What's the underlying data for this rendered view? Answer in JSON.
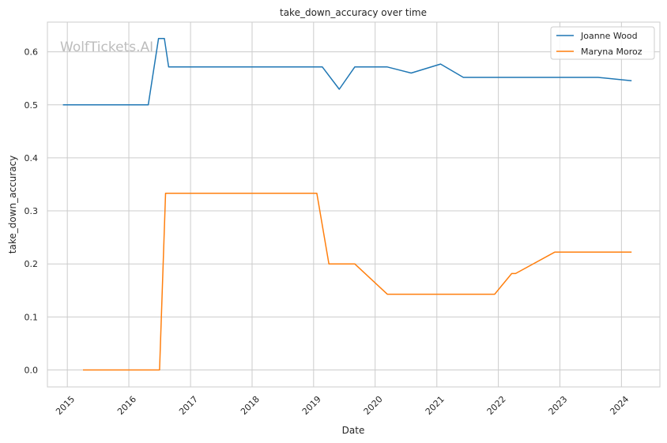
{
  "watermark": "WolfTickets.AI",
  "chart_data": {
    "type": "line",
    "title": "take_down_accuracy over time",
    "xlabel": "Date",
    "ylabel": "take_down_accuracy",
    "x_tick_labels": [
      "2015",
      "2016",
      "2017",
      "2018",
      "2019",
      "2020",
      "2021",
      "2022",
      "2023",
      "2024"
    ],
    "y_tick_labels": [
      "0.0",
      "0.1",
      "0.2",
      "0.3",
      "0.4",
      "0.5",
      "0.6"
    ],
    "ylim": [
      -0.032,
      0.656
    ],
    "xlim": [
      "2014-09-05",
      "2024-08-16"
    ],
    "grid": true,
    "legend_position": "top-right",
    "colors": {
      "Joanne Wood": "#1f77b4",
      "Maryna Moroz": "#ff7f0e"
    },
    "series": [
      {
        "name": "Joanne Wood",
        "points": [
          {
            "x": "2014-12-06",
            "y": 0.5
          },
          {
            "x": "2016-04-25",
            "y": 0.5
          },
          {
            "x": "2016-06-25",
            "y": 0.625
          },
          {
            "x": "2016-07-30",
            "y": 0.625
          },
          {
            "x": "2016-08-24",
            "y": 0.5714
          },
          {
            "x": "2019-02-22",
            "y": 0.5714
          },
          {
            "x": "2019-06-02",
            "y": 0.5294
          },
          {
            "x": "2019-09-02",
            "y": 0.5714
          },
          {
            "x": "2020-03-13",
            "y": 0.5714
          },
          {
            "x": "2020-08-02",
            "y": 0.56
          },
          {
            "x": "2021-01-23",
            "y": 0.5769
          },
          {
            "x": "2021-06-07",
            "y": 0.5517
          },
          {
            "x": "2023-08-15",
            "y": 0.5517
          },
          {
            "x": "2024-03-01",
            "y": 0.5455
          }
        ]
      },
      {
        "name": "Maryna Moroz",
        "points": [
          {
            "x": "2015-04-04",
            "y": 0.0
          },
          {
            "x": "2016-07-01",
            "y": 0.0
          },
          {
            "x": "2016-08-06",
            "y": 0.3333
          },
          {
            "x": "2019-01-20",
            "y": 0.3333
          },
          {
            "x": "2019-04-02",
            "y": 0.2
          },
          {
            "x": "2019-09-02",
            "y": 0.2
          },
          {
            "x": "2020-03-13",
            "y": 0.1429
          },
          {
            "x": "2021-12-10",
            "y": 0.1429
          },
          {
            "x": "2022-03-21",
            "y": 0.1818
          },
          {
            "x": "2022-04-13",
            "y": 0.1818
          },
          {
            "x": "2022-12-01",
            "y": 0.2222
          },
          {
            "x": "2024-03-01",
            "y": 0.2222
          }
        ]
      }
    ]
  }
}
